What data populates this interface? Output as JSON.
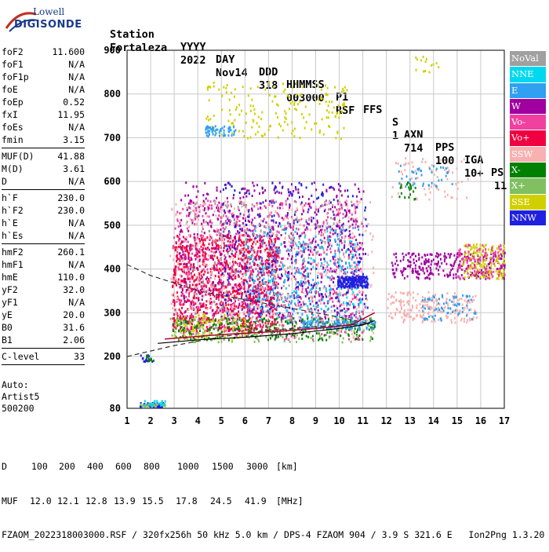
{
  "logo": {
    "line1": "Lowell",
    "line2": "DIGISONDE"
  },
  "header": {
    "labels": [
      "Station",
      "YYYY",
      "DAY",
      "DDD",
      "HHMMSS",
      "P1",
      "FFS",
      "S",
      "AXN",
      "PPS",
      "IGA",
      "PS"
    ],
    "values": [
      "Fortaleza",
      "2022",
      "Nov14",
      "318",
      "003000",
      "RSF",
      "",
      "1",
      "714",
      "100",
      "10+",
      "11"
    ]
  },
  "params": {
    "group1": [
      {
        "name": "foF2",
        "value": "11.600"
      },
      {
        "name": "foF1",
        "value": "N/A"
      },
      {
        "name": "foF1p",
        "value": "N/A"
      },
      {
        "name": "foE",
        "value": "N/A"
      },
      {
        "name": "foEp",
        "value": "0.52"
      },
      {
        "name": "fxI",
        "value": "11.95"
      },
      {
        "name": "foEs",
        "value": "N/A"
      },
      {
        "name": "fmin",
        "value": "3.15"
      }
    ],
    "group2": [
      {
        "name": "MUF(D)",
        "value": "41.88"
      },
      {
        "name": "M(D)",
        "value": "3.61"
      },
      {
        "name": "D",
        "value": "N/A"
      }
    ],
    "group3": [
      {
        "name": "h`F",
        "value": "230.0"
      },
      {
        "name": "h`F2",
        "value": "230.0"
      },
      {
        "name": "h`E",
        "value": "N/A"
      },
      {
        "name": "h`Es",
        "value": "N/A"
      }
    ],
    "group4": [
      {
        "name": "hmF2",
        "value": "260.1"
      },
      {
        "name": "hmF1",
        "value": "N/A"
      },
      {
        "name": "hmE",
        "value": "110.0"
      },
      {
        "name": "yF2",
        "value": "32.0"
      },
      {
        "name": "yF1",
        "value": "N/A"
      },
      {
        "name": "yE",
        "value": "20.0"
      },
      {
        "name": "B0",
        "value": "31.6"
      },
      {
        "name": "B1",
        "value": "2.06"
      }
    ],
    "group5": [
      {
        "name": "C-level",
        "value": "33"
      }
    ]
  },
  "auto": {
    "line1": "Auto:",
    "line2": "Artist5",
    "line3": "500200"
  },
  "legend": [
    {
      "label": "NoVal",
      "color": "#a0a0a0"
    },
    {
      "label": "NNE",
      "color": "#00d8f0"
    },
    {
      "label": "E",
      "color": "#30a0f0"
    },
    {
      "label": "W",
      "color": "#a000a0"
    },
    {
      "label": "Vo-",
      "color": "#f040a0"
    },
    {
      "label": "Vo+",
      "color": "#f00040"
    },
    {
      "label": "SSW",
      "color": "#f8b0b0"
    },
    {
      "label": "X-",
      "color": "#008000"
    },
    {
      "label": "X+",
      "color": "#80c060"
    },
    {
      "label": "SSE",
      "color": "#d0d000"
    },
    {
      "label": "NNW",
      "color": "#2020e0"
    }
  ],
  "footer": {
    "d_label": "D",
    "d_values": [
      "100",
      "200",
      "400",
      "600",
      "800",
      "1000",
      "1500",
      "3000"
    ],
    "d_unit": "[km]",
    "muf_label": "MUF",
    "muf_values": [
      "12.0",
      "12.1",
      "12.8",
      "13.9",
      "15.5",
      "17.8",
      "24.5",
      "41.9"
    ],
    "muf_unit": "[MHz]",
    "info": "FZAOM_2022318003000.RSF / 320fx256h 50 kHz 5.0 km / DPS-4 FZAOM 904 / 3.9 S 321.6 E   Ion2Png 1.3.20"
  },
  "chart_data": {
    "type": "scatter",
    "xlim": [
      1,
      17
    ],
    "ylim": [
      80,
      900
    ],
    "x_ticks": [
      1,
      2,
      3,
      4,
      5,
      6,
      7,
      8,
      9,
      10,
      11,
      12,
      13,
      14,
      15,
      16,
      17
    ],
    "y_ticks": [
      80,
      200,
      300,
      400,
      500,
      600,
      700,
      800,
      900
    ],
    "grid": true,
    "legend_position": "right",
    "clusters": [
      {
        "color": "#f00040",
        "fmin": 2.9,
        "fmax": 7.4,
        "hmin": 260,
        "hmax": 480,
        "n": 1100
      },
      {
        "color": "#f040a0",
        "fmin": 2.9,
        "fmax": 11.0,
        "hmin": 240,
        "hmax": 560,
        "n": 700
      },
      {
        "color": "#a000a0",
        "fmin": 3.2,
        "fmax": 11.0,
        "hmin": 280,
        "hmax": 600,
        "n": 700
      },
      {
        "color": "#2020e0",
        "fmin": 5.0,
        "fmax": 11.2,
        "hmin": 300,
        "hmax": 600,
        "n": 300
      },
      {
        "color": "#f8b0b0",
        "fmin": 2.8,
        "fmax": 11.5,
        "hmin": 240,
        "hmax": 560,
        "n": 500
      },
      {
        "color": "#30a0f0",
        "fmin": 6.0,
        "fmax": 11.0,
        "hmin": 270,
        "hmax": 500,
        "n": 220
      },
      {
        "color": "#00d8f0",
        "fmin": 6.0,
        "fmax": 11.0,
        "hmin": 280,
        "hmax": 500,
        "n": 150
      },
      {
        "color": "#a0a0a0",
        "fmin": 3.5,
        "fmax": 10.5,
        "hmin": 280,
        "hmax": 560,
        "n": 200
      },
      {
        "color": "#008000",
        "fmin": 2.9,
        "fmax": 11.5,
        "hmin": 240,
        "hmax": 290,
        "n": 260
      },
      {
        "color": "#80c060",
        "fmin": 2.8,
        "fmax": 11.5,
        "hmin": 235,
        "hmax": 290,
        "n": 120
      },
      {
        "color": "#d0d000",
        "fmin": 3.0,
        "fmax": 6.0,
        "hmin": 240,
        "hmax": 300,
        "n": 80
      },
      {
        "color": "#2020e0",
        "fmin": 9.9,
        "fmax": 11.2,
        "hmin": 360,
        "hmax": 385,
        "n": 160
      },
      {
        "color": "#30a0f0",
        "fmin": 8.4,
        "fmax": 11.5,
        "hmin": 265,
        "hmax": 285,
        "n": 120
      },
      {
        "color": "#d0d000",
        "fmin": 4.3,
        "fmax": 10.3,
        "hmin": 700,
        "hmax": 830,
        "n": 180
      },
      {
        "color": "#30a0f0",
        "fmin": 4.3,
        "fmax": 5.6,
        "hmin": 705,
        "hmax": 730,
        "n": 60
      },
      {
        "color": "#f8b0b0",
        "fmin": 12.0,
        "fmax": 15.8,
        "hmin": 280,
        "hmax": 350,
        "n": 220
      },
      {
        "color": "#30a0f0",
        "fmin": 13.5,
        "fmax": 15.8,
        "hmin": 285,
        "hmax": 345,
        "n": 70
      },
      {
        "color": "#a000a0",
        "fmin": 12.2,
        "fmax": 17.0,
        "hmin": 380,
        "hmax": 440,
        "n": 280
      },
      {
        "color": "#d0d000",
        "fmin": 15.2,
        "fmax": 17.0,
        "hmin": 380,
        "hmax": 460,
        "n": 160
      },
      {
        "color": "#f040a0",
        "fmin": 15.0,
        "fmax": 17.0,
        "hmin": 380,
        "hmax": 460,
        "n": 100
      },
      {
        "color": "#f8b0b0",
        "fmin": 12.2,
        "fmax": 15.5,
        "hmin": 560,
        "hmax": 660,
        "n": 70
      },
      {
        "color": "#30a0f0",
        "fmin": 12.5,
        "fmax": 14.8,
        "hmin": 590,
        "hmax": 640,
        "n": 40
      },
      {
        "color": "#008000",
        "fmin": 12.5,
        "fmax": 13.2,
        "hmin": 560,
        "hmax": 600,
        "n": 20
      },
      {
        "color": "#d0d000",
        "fmin": 13.1,
        "fmax": 14.2,
        "hmin": 850,
        "hmax": 890,
        "n": 14
      },
      {
        "color": "#2020e0",
        "fmin": 1.5,
        "fmax": 2.6,
        "hmin": 85,
        "hmax": 95,
        "n": 50
      },
      {
        "color": "#80c060",
        "fmin": 1.5,
        "fmax": 2.6,
        "hmin": 86,
        "hmax": 93,
        "n": 30
      },
      {
        "color": "#00d8f0",
        "fmin": 1.6,
        "fmax": 2.7,
        "hmin": 88,
        "hmax": 100,
        "n": 20
      },
      {
        "color": "#2020e0",
        "fmin": 1.5,
        "fmax": 2.1,
        "hmin": 190,
        "hmax": 205,
        "n": 16
      },
      {
        "color": "#008000",
        "fmin": 1.8,
        "fmax": 2.1,
        "hmin": 192,
        "hmax": 205,
        "n": 10
      }
    ],
    "profile_curve": [
      [
        2.3,
        230
      ],
      [
        4,
        238
      ],
      [
        6,
        244
      ],
      [
        8,
        252
      ],
      [
        10,
        264
      ],
      [
        11,
        272
      ],
      [
        11.5,
        282
      ]
    ],
    "trace_line": [
      [
        2.6,
        240
      ],
      [
        5,
        250
      ],
      [
        7,
        256
      ],
      [
        9,
        264
      ],
      [
        10.5,
        272
      ],
      [
        11.5,
        300
      ]
    ],
    "dashed_top": [
      [
        1,
        410
      ],
      [
        2,
        385
      ],
      [
        3,
        368
      ],
      [
        4,
        350
      ],
      [
        6,
        330
      ],
      [
        8,
        310
      ],
      [
        10,
        290
      ],
      [
        11.3,
        275
      ]
    ],
    "dashed_bottom": [
      [
        1,
        200
      ],
      [
        3,
        225
      ],
      [
        5,
        245
      ],
      [
        7,
        260
      ],
      [
        9,
        268
      ],
      [
        10.5,
        272
      ],
      [
        11.3,
        275
      ]
    ]
  }
}
